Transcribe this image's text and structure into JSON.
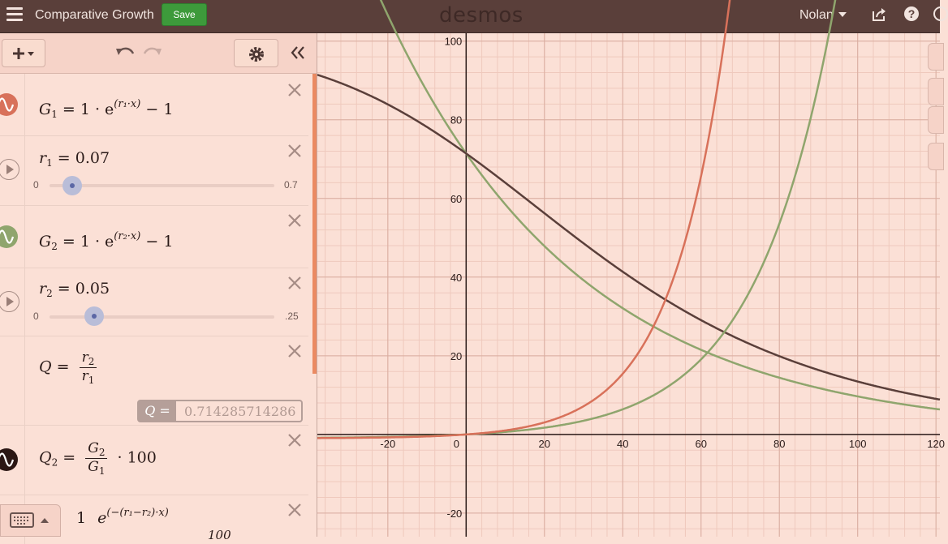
{
  "header": {
    "doc_title": "Comparative Growth",
    "save_label": "Save",
    "logo": "desmos",
    "user": "Nolan",
    "help": "?"
  },
  "colors": {
    "topbar": "#5a3f3a",
    "panel": "#fbe0d6",
    "red": "#d8715a",
    "green": "#8fa56d",
    "dark": "#5a3f3a",
    "save": "#3d9a3b"
  },
  "expressions": [
    {
      "id": 1,
      "kind": "function",
      "lhs": "G",
      "sub": "1",
      "text": "= 1 · e",
      "exp": "r₁·x",
      "tail": "− 1",
      "color": "red"
    },
    {
      "id": 2,
      "kind": "slider",
      "var": "r",
      "sub": "1",
      "value": "= 0.07",
      "min": "0",
      "max": "0.7",
      "fraction": 0.1
    },
    {
      "id": 3,
      "kind": "function",
      "lhs": "G",
      "sub": "2",
      "text": "= 1 · e",
      "exp": "r₂·x",
      "tail": "− 1",
      "color": "green"
    },
    {
      "id": 4,
      "kind": "slider",
      "var": "r",
      "sub": "2",
      "value": "= 0.05",
      "min": "0",
      "max": ".25",
      "fraction": 0.2
    },
    {
      "id": 5,
      "kind": "ratio",
      "lhs": "Q",
      "eq": "=",
      "num_var": "r",
      "num_sub": "2",
      "den_var": "r",
      "den_sub": "1",
      "eval_label": "Q =",
      "eval_value": "0.714285714286"
    },
    {
      "id": 6,
      "kind": "ratio-scaled",
      "lhs": "Q",
      "sub": "2",
      "eq": "=",
      "num_var": "G",
      "num_sub": "2",
      "den_var": "G",
      "den_sub": "1",
      "tail": "· 100",
      "color": "dark"
    },
    {
      "id": 7,
      "kind": "partial",
      "lead": "1",
      "exp": "−(r₁−r₂)·x",
      "tail": "100"
    }
  ],
  "graph": {
    "x_ticks": [
      "-20",
      "0",
      "20",
      "40",
      "60",
      "80",
      "100",
      "120"
    ],
    "y_ticks": [
      "100",
      "80",
      "60",
      "40",
      "20",
      "-20"
    ],
    "x_range": [
      -38,
      121
    ],
    "y_range": [
      -26,
      102
    ],
    "r1": 0.07,
    "r2": 0.05
  }
}
